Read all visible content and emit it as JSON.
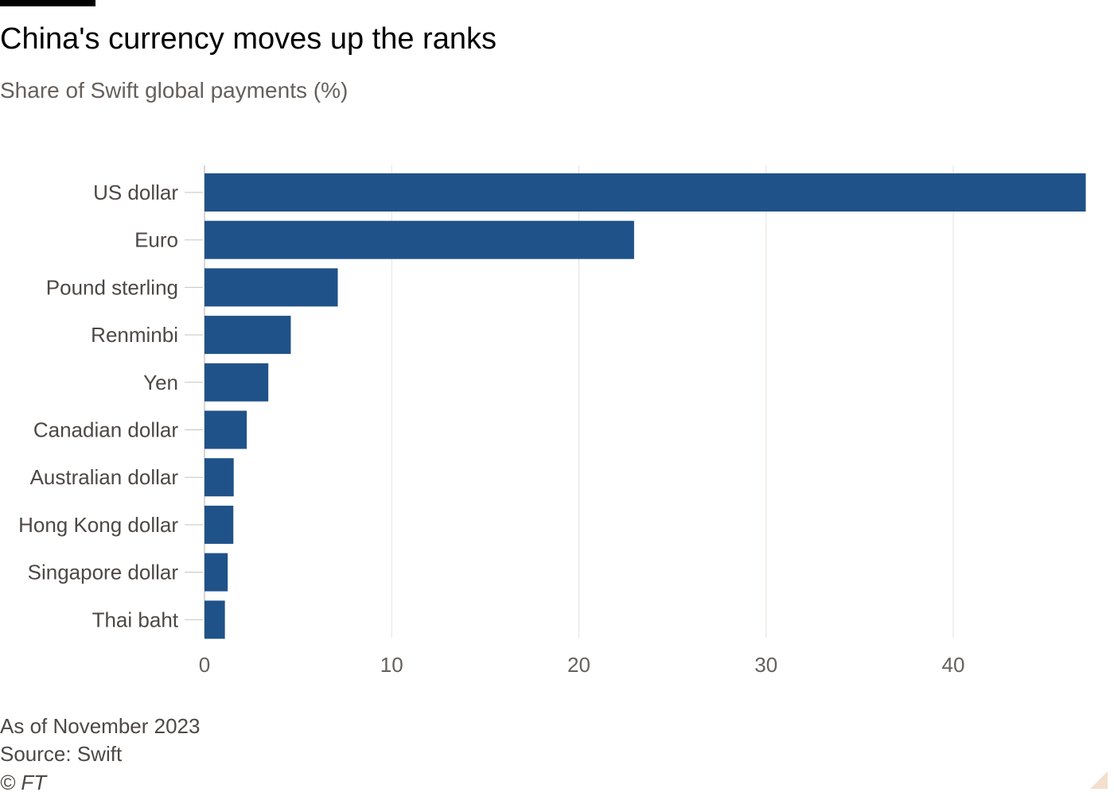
{
  "chart_data": {
    "type": "bar",
    "orientation": "horizontal",
    "title": "China's currency moves up the ranks",
    "subtitle": "Share of Swift global payments (%)",
    "categories": [
      "US dollar",
      "Euro",
      "Pound sterling",
      "Renminbi",
      "Yen",
      "Canadian dollar",
      "Australian dollar",
      "Hong Kong dollar",
      "Singapore dollar",
      "Thai baht"
    ],
    "values": [
      47.08,
      22.95,
      7.12,
      4.61,
      3.41,
      2.26,
      1.56,
      1.54,
      1.24,
      1.09
    ],
    "xlim": [
      0,
      47.1
    ],
    "xticks": [
      0,
      10,
      20,
      30,
      40
    ],
    "xlabel": "",
    "ylabel": "",
    "grid": "vertical",
    "legend": "none",
    "bar_color": "#1f5289"
  },
  "footer": {
    "note": "As of November 2023",
    "source": "Source: Swift",
    "copyright": "© FT"
  }
}
